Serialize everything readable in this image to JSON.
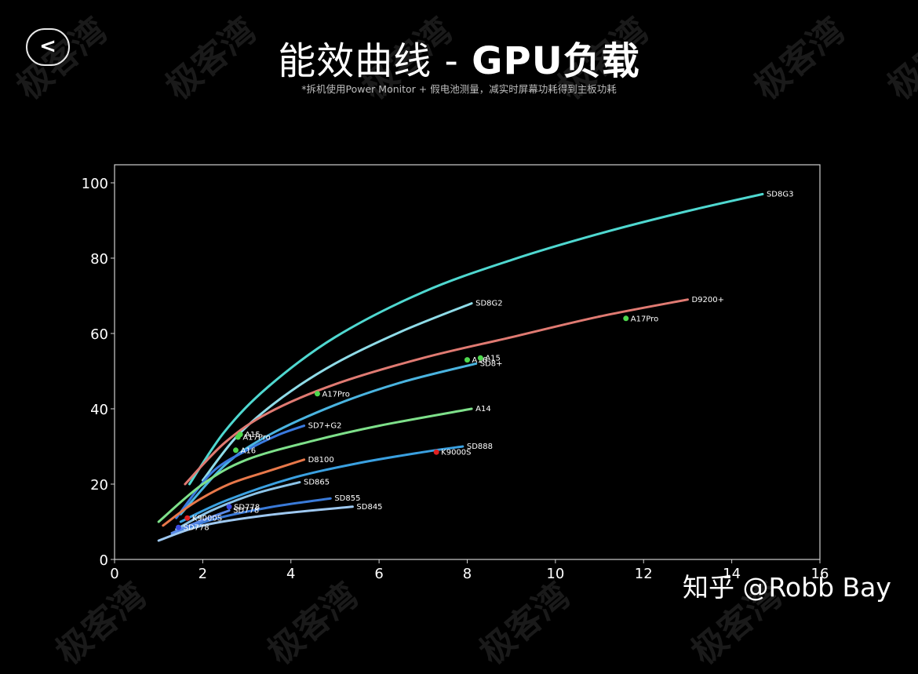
{
  "header": {
    "back_label": "<",
    "title_cn": "能效曲线 - ",
    "title_bold": "GPU负载",
    "subtitle": "*拆机使用Power Monitor + 假电池测量，减实时屏幕功耗得到主板功耗"
  },
  "watermark": {
    "text": "极客湾"
  },
  "credit": "知乎 @Robb Bay",
  "chart_data": {
    "type": "line",
    "title": "能效曲线 - GPU负载",
    "subtitle": "*拆机使用Power Monitor + 假电池测量，减实时屏幕功耗得到主板功耗",
    "xlabel": "",
    "ylabel": "",
    "xlim": [
      0,
      16
    ],
    "ylim": [
      0,
      105
    ],
    "xticks": [
      0,
      2,
      4,
      6,
      8,
      10,
      12,
      14,
      16
    ],
    "yticks": [
      0,
      20,
      40,
      60,
      80,
      100
    ],
    "grid": false,
    "legend": "inline end labels",
    "series": [
      {
        "name": "SD8G3",
        "color": "#4fd8d0",
        "x": [
          1.7,
          2.5,
          3.5,
          5,
          7,
          9,
          11,
          13,
          14.7
        ],
        "y": [
          20,
          34,
          46,
          59,
          71,
          79.5,
          86.5,
          92.5,
          97
        ]
      },
      {
        "name": "SD8G2",
        "color": "#8fdce8",
        "x": [
          2.0,
          2.8,
          3.8,
          5,
          6.5,
          8.1
        ],
        "y": [
          21,
          33,
          43,
          52,
          60.5,
          68
        ]
      },
      {
        "name": "D9200+",
        "color": "#e07a72",
        "x": [
          1.6,
          2.5,
          3.5,
          5,
          7,
          9,
          11,
          13.0
        ],
        "y": [
          20,
          31,
          39,
          46.5,
          53.5,
          59,
          64.5,
          69
        ]
      },
      {
        "name": "SD8+",
        "color": "#4ab4e0",
        "x": [
          1.5,
          2.5,
          3.5,
          5,
          6.5,
          8.2
        ],
        "y": [
          12,
          25,
          33,
          41,
          47,
          52
        ]
      },
      {
        "name": "SD7+G2",
        "color": "#3a7ae0",
        "x": [
          1.4,
          2.2,
          3.0,
          3.7,
          4.3
        ],
        "y": [
          11,
          23,
          29,
          33,
          35.5
        ]
      },
      {
        "name": "A14",
        "color": "#7ee08a",
        "x": [
          1.0,
          2.0,
          3.0,
          4.5,
          6.0,
          8.1
        ],
        "y": [
          10,
          20,
          26.5,
          31.5,
          35.5,
          40
        ]
      },
      {
        "name": "D8100",
        "color": "#e8784a",
        "x": [
          1.1,
          1.8,
          2.6,
          3.5,
          4.3
        ],
        "y": [
          9,
          15,
          20,
          23.5,
          26.5
        ]
      },
      {
        "name": "SD888",
        "color": "#3aa0e0",
        "x": [
          1.5,
          2.5,
          4,
          5.5,
          7,
          7.9
        ],
        "y": [
          10,
          15.5,
          21.5,
          25.5,
          28.5,
          30
        ]
      },
      {
        "name": "SD865",
        "color": "#8cc4e8",
        "x": [
          1.4,
          2.2,
          3.2,
          4.2
        ],
        "y": [
          8,
          13,
          17.5,
          20.5
        ]
      },
      {
        "name": "SD855",
        "color": "#3a7ad8",
        "x": [
          1.3,
          2.2,
          3.5,
          4.9
        ],
        "y": [
          6.5,
          10.5,
          13.8,
          16.2
        ]
      },
      {
        "name": "SD845",
        "color": "#9ec8f0",
        "x": [
          1.0,
          2.0,
          3.5,
          5.4
        ],
        "y": [
          5,
          9,
          11.8,
          14
        ]
      },
      {
        "name": "SD778",
        "color": "#5a8ae8",
        "x": [
          1.3,
          1.8,
          2.6
        ],
        "y": [
          7,
          9.5,
          13
        ]
      }
    ],
    "points": [
      {
        "label": "A17Pro",
        "x": 11.6,
        "y": 64,
        "color": "#4ed84e"
      },
      {
        "label": "A17Pro",
        "x": 4.6,
        "y": 44,
        "color": "#4ed84e"
      },
      {
        "label": "A16",
        "x": 8.0,
        "y": 53,
        "color": "#4ed84e"
      },
      {
        "label": "A15",
        "x": 8.3,
        "y": 53.5,
        "color": "#4ed84e"
      },
      {
        "label": "A15",
        "x": 2.85,
        "y": 33.2,
        "color": "#4ed84e"
      },
      {
        "label": "A17Pro",
        "x": 2.8,
        "y": 32.5,
        "color": "#4ed84e"
      },
      {
        "label": "A16",
        "x": 2.75,
        "y": 29,
        "color": "#4ed84e"
      },
      {
        "label": "K9000S",
        "x": 7.3,
        "y": 28.5,
        "color": "#e02020"
      },
      {
        "label": "K9000S",
        "x": 1.65,
        "y": 11,
        "color": "#e02020"
      },
      {
        "label": "SD778",
        "x": 2.6,
        "y": 14,
        "color": "#3a4ae0"
      },
      {
        "label": "SD778",
        "x": 1.45,
        "y": 8.5,
        "color": "#3a4ae0"
      }
    ]
  }
}
